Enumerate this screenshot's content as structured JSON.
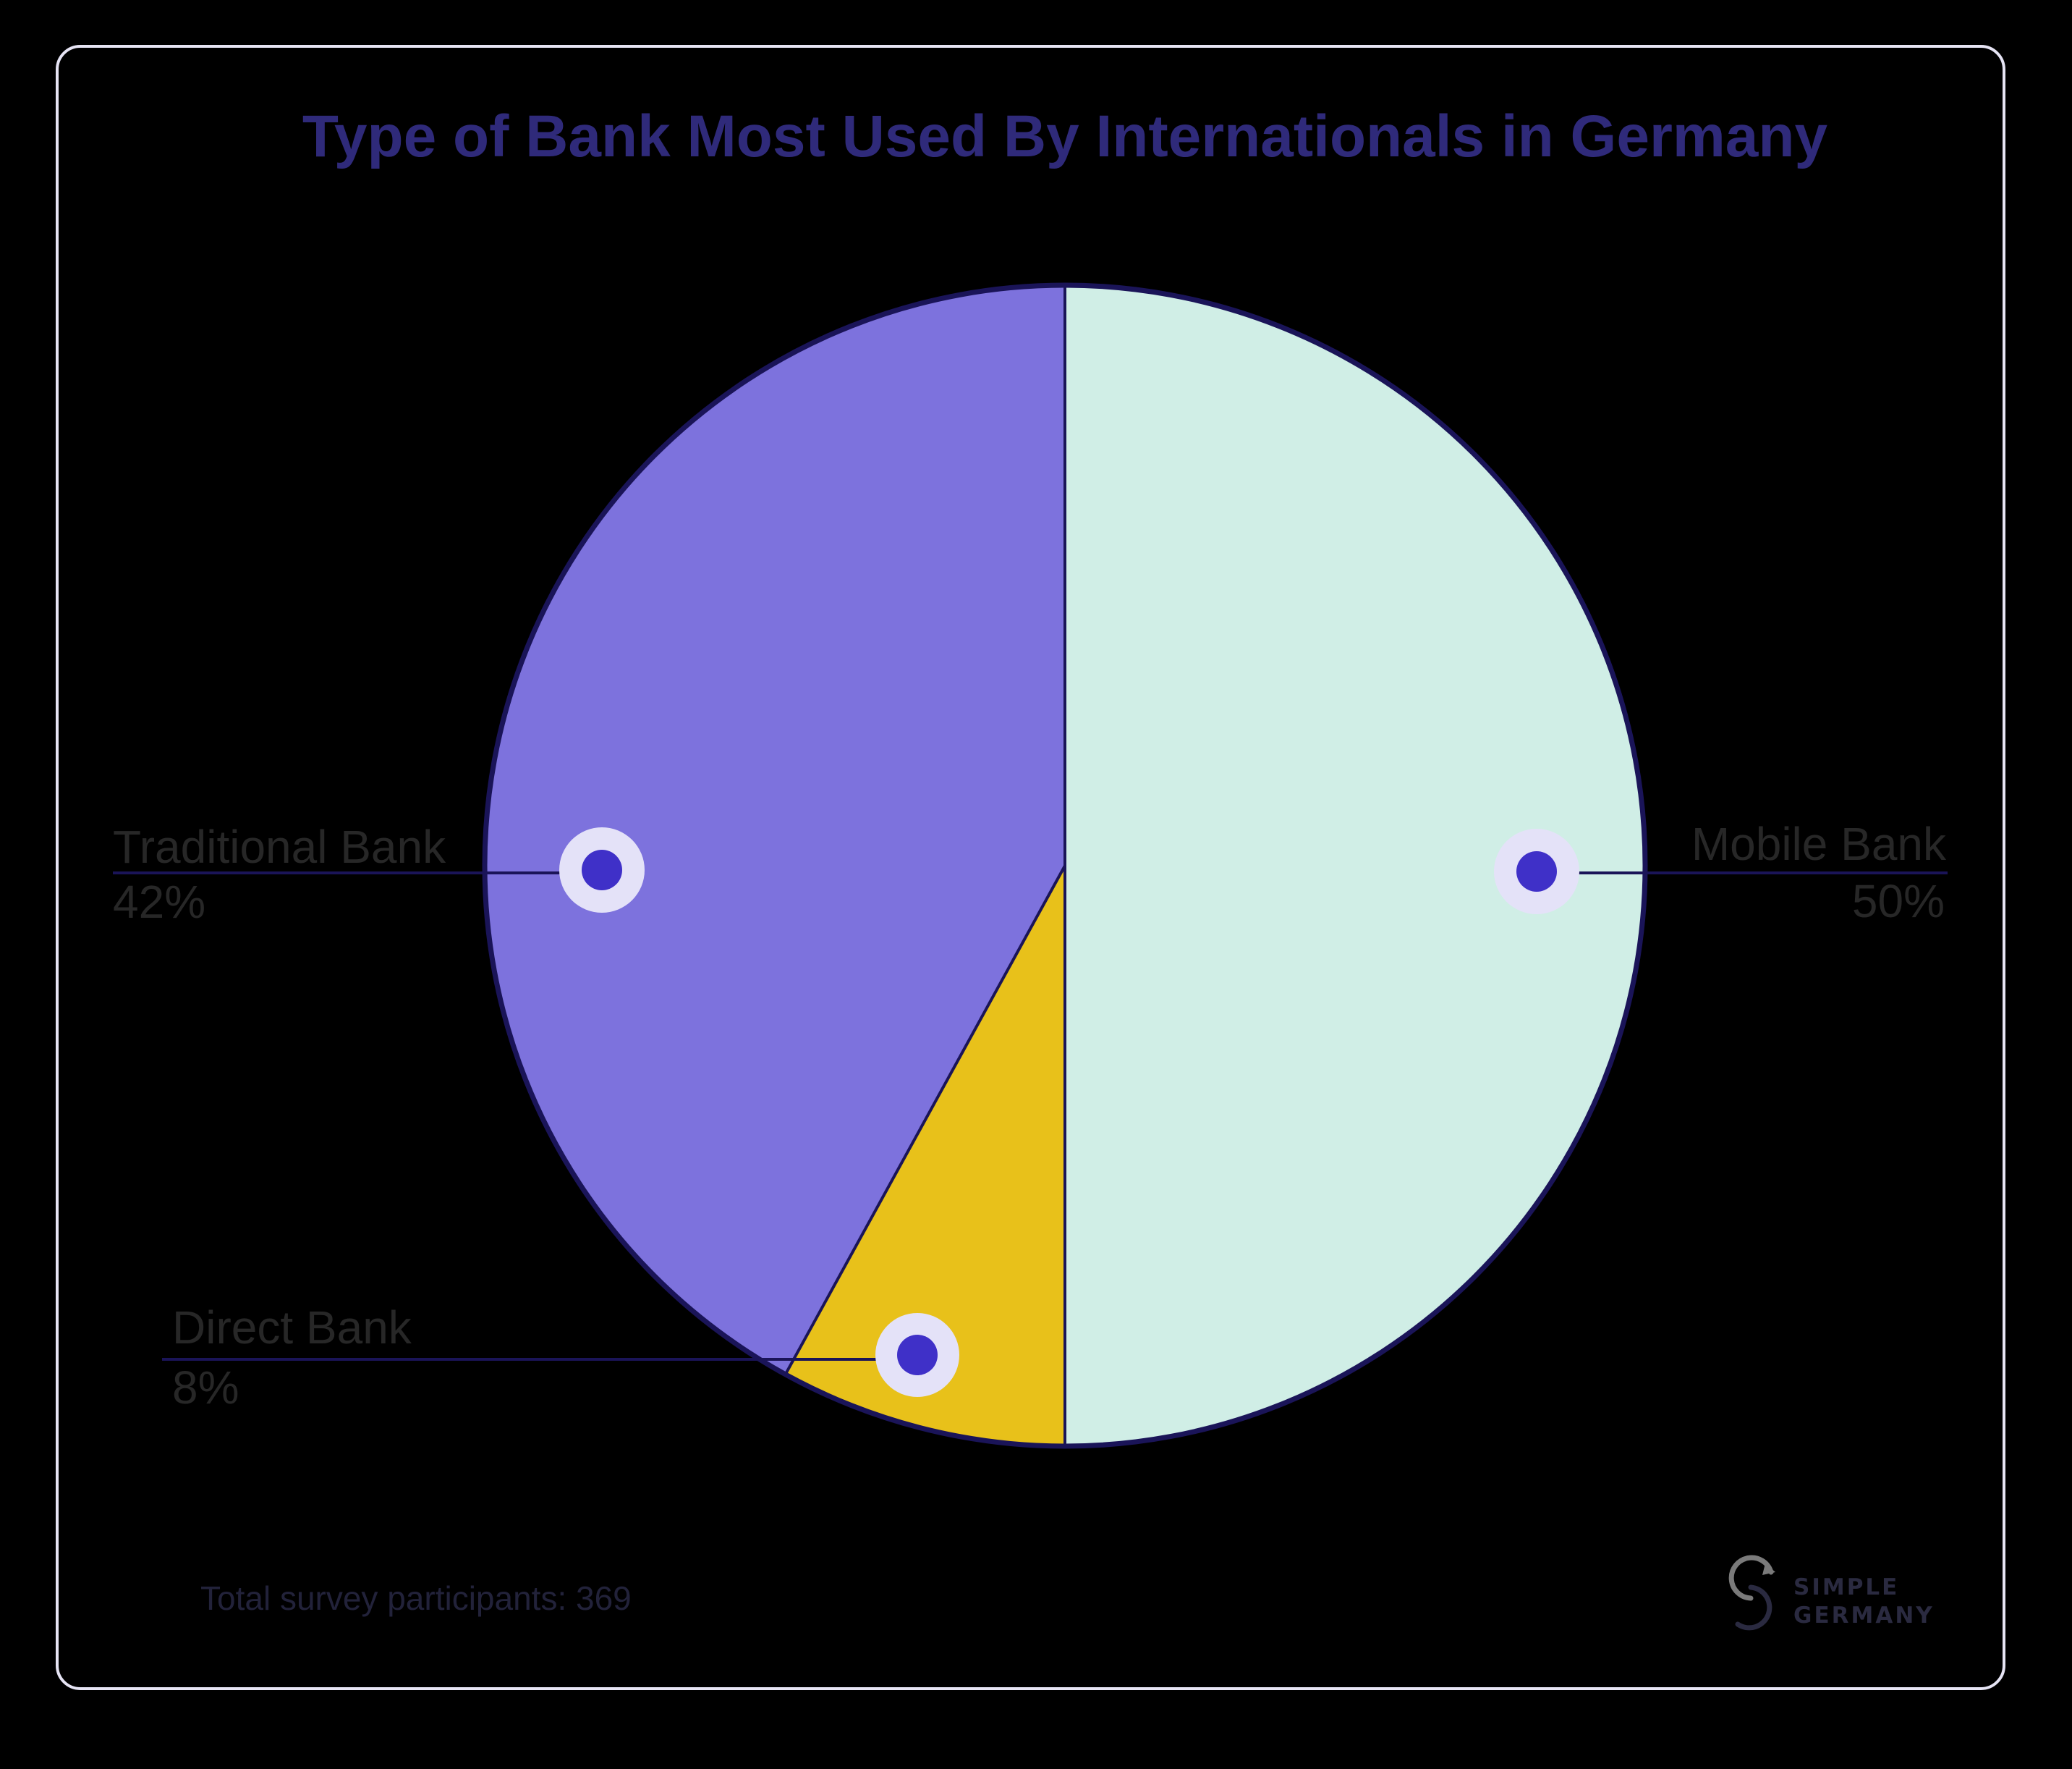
{
  "title": "Type of Bank Most Used By Internationals in Germany",
  "footer": {
    "participants_label": "Total survey participants: 369"
  },
  "logo": {
    "line1": "SIMPLE",
    "line2": "GERMANY"
  },
  "labels": {
    "mobile": {
      "name": "Mobile Bank",
      "pct": "50%"
    },
    "traditional": {
      "name": "Traditional Bank",
      "pct": "42%"
    },
    "direct": {
      "name": "Direct Bank",
      "pct": "8%"
    }
  },
  "colors": {
    "background": "#000000",
    "card_border": "#e6e4f4",
    "title": "#2f2a7a",
    "slice_stroke": "#1a1458",
    "mobile": "#d0eee6",
    "direct": "#e8c11a",
    "traditional": "#7d72dd",
    "marker_ring": "#e4e2f8",
    "marker_dot": "#3f30c8",
    "label_text": "#272727"
  },
  "chart_data": {
    "type": "pie",
    "title": "Type of Bank Most Used By Internationals in Germany",
    "categories": [
      "Mobile Bank",
      "Direct Bank",
      "Traditional Bank"
    ],
    "values": [
      50,
      8,
      42
    ],
    "unit": "%",
    "colors": [
      "#d0eee6",
      "#e8c11a",
      "#7d72dd"
    ],
    "start_angle_deg": 0,
    "direction": "clockwise",
    "annotation": "Total survey participants: 369",
    "total_participants": 369,
    "legend": "none (callout labels)"
  }
}
